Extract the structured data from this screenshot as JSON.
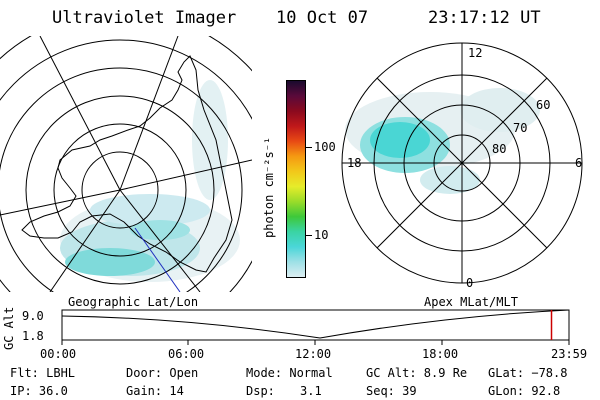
{
  "header": {
    "title": "Ultraviolet Imager",
    "date": "10 Oct 07",
    "time": "23:17:12 UT"
  },
  "geo_panel": {
    "label": "Geographic Lat/Lon"
  },
  "apex_panel": {
    "label": "Apex MLat/MLT",
    "mlt_labels": [
      "12",
      "18",
      "6",
      "0"
    ],
    "mlat_labels": [
      "60",
      "70",
      "80"
    ]
  },
  "colorbar": {
    "unit": "photon cm⁻²s⁻¹",
    "ticks": [
      "100",
      "10"
    ],
    "colors": [
      "#1a0a2e",
      "#5a0a3a",
      "#8b0a1e",
      "#c0181a",
      "#e84a14",
      "#f59a12",
      "#f2c81a",
      "#e6ec2a",
      "#9adc2a",
      "#3ec83a",
      "#3ad4a4",
      "#4ad6d8",
      "#9ee0e6",
      "#dceef2"
    ]
  },
  "timeline": {
    "axis_label": "GC Alt",
    "y_ticks": [
      "9.0",
      "1.8"
    ],
    "x_ticks": [
      "00:00",
      "06:00",
      "12:00",
      "18:00",
      "23:59"
    ],
    "current_fraction": 0.9655,
    "marker_color": "#cc0000"
  },
  "info": {
    "flt": "Flt: LBHL",
    "door": "Door: Open",
    "mode": "Mode: Normal",
    "gc_alt": "GC Alt: 8.9 Re",
    "glat": "GLat: −78.8",
    "ip": "IP: 36.0",
    "gain": "Gain: 14",
    "dsp_label": "Dsp:",
    "dsp_value": "3.1",
    "seq": "Seq: 39",
    "glon": "GLon:  92.8"
  }
}
